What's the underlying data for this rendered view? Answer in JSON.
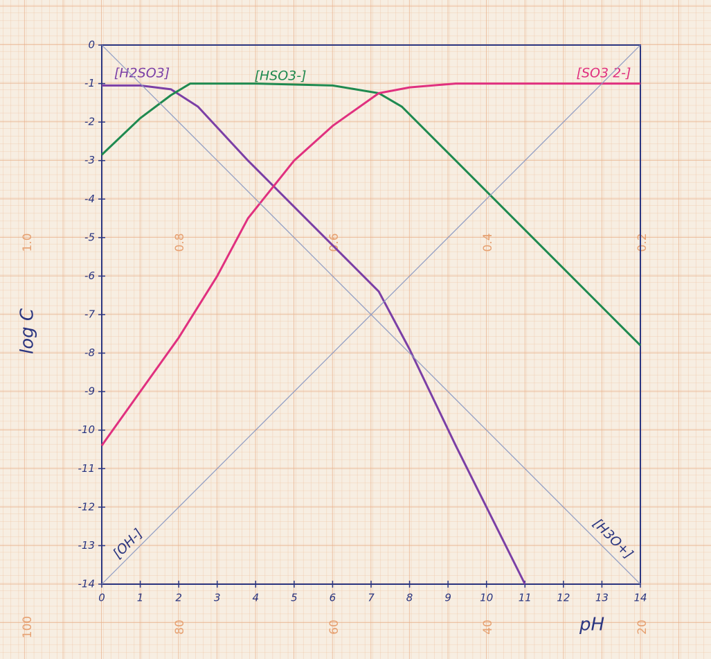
{
  "chart_data": {
    "type": "line",
    "x_label": "pH",
    "y_label": "log C",
    "xlim": [
      0,
      14
    ],
    "ylim": [
      -14,
      0
    ],
    "xticks": [
      0,
      1,
      2,
      3,
      4,
      5,
      6,
      7,
      8,
      9,
      10,
      11,
      12,
      13,
      14
    ],
    "yticks": [
      0,
      -1,
      -2,
      -3,
      -4,
      -5,
      -6,
      -7,
      -8,
      -9,
      -10,
      -11,
      -12,
      -13,
      -14
    ],
    "series": [
      {
        "name": "[H2SO3]",
        "color": "#7b3fa6",
        "x": [
          0,
          1,
          1.8,
          2.5,
          3.8,
          5.2,
          7.2,
          8,
          9.2,
          11
        ],
        "values": [
          -1.05,
          -1.05,
          -1.15,
          -1.6,
          -3.0,
          -4.4,
          -6.4,
          -7.9,
          -10.4,
          -14
        ]
      },
      {
        "name": "[HSO3-]",
        "color": "#1f8a50",
        "x": [
          0,
          1,
          1.8,
          2.3,
          4,
          6,
          7.2,
          7.8,
          9.2,
          13.2,
          14
        ],
        "values": [
          -2.85,
          -1.9,
          -1.3,
          -1.0,
          -1.0,
          -1.05,
          -1.25,
          -1.6,
          -3.0,
          -7.0,
          -7.8
        ]
      },
      {
        "name": "[SO3 2-]",
        "color": "#e0307f",
        "x": [
          0,
          1,
          2,
          3,
          3.8,
          5,
          6,
          7.2,
          8,
          9.2,
          14
        ],
        "values": [
          -10.4,
          -9.0,
          -7.6,
          -6.0,
          -4.5,
          -3.0,
          -2.1,
          -1.25,
          -1.1,
          -1.0,
          -1.0
        ]
      },
      {
        "name": "[OH-]",
        "color": "#8d9bc4",
        "x": [
          0,
          14
        ],
        "values": [
          -14,
          0
        ]
      },
      {
        "name": "[H3O+]",
        "color": "#8d9bc4",
        "x": [
          0,
          14
        ],
        "values": [
          0,
          -14
        ]
      }
    ],
    "paper_scale_top": [
      "1.0",
      "0.8",
      "0.6",
      "0.4",
      "0.2"
    ],
    "paper_scale_bottom": [
      "100",
      "80",
      "60",
      "40",
      "20"
    ]
  }
}
